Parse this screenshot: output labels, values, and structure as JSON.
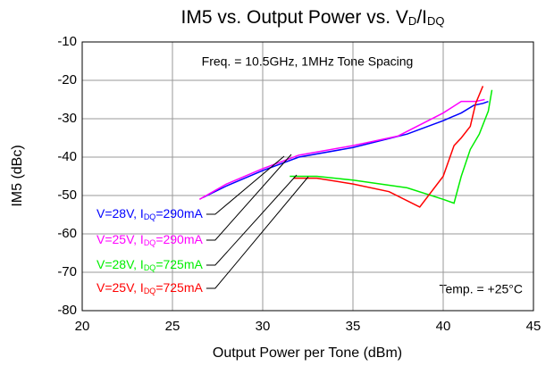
{
  "chart_data": {
    "type": "line",
    "title": [
      "IM5 vs. Output Power vs. V",
      "D",
      "/I",
      "DQ"
    ],
    "x_label": "Output Power per Tone (dBm)",
    "y_label": "IM5 (dBc)",
    "annotations": [
      "Freq. = 10.5GHz, 1MHz Tone Spacing",
      "Temp. = +25°C"
    ],
    "xlim": [
      20,
      45
    ],
    "xticks": [
      20,
      25,
      30,
      35,
      40,
      45
    ],
    "ylim": [
      -80,
      -10
    ],
    "yticks": [
      -80,
      -70,
      -60,
      -50,
      -40,
      -30,
      -20,
      -10
    ],
    "grid": true,
    "series": [
      {
        "name": [
          "V=28V, I",
          "DQ",
          "=290mA"
        ],
        "color": "#0000ff",
        "x": [
          26.7,
          28,
          30,
          32,
          35,
          38,
          40,
          41,
          41.7,
          42.2,
          42.5
        ],
        "values": [
          -50.5,
          -47.5,
          -43.5,
          -40,
          -37.5,
          -34,
          -30.5,
          -28.5,
          -26.5,
          -26,
          -25.5
        ]
      },
      {
        "name": [
          "V=25V, I",
          "DQ",
          "=290mA"
        ],
        "color": "#ff00ff",
        "x": [
          26.5,
          28,
          30,
          32,
          35,
          37.5,
          40,
          41,
          41.8,
          42.3
        ],
        "values": [
          -51,
          -47,
          -43,
          -39.5,
          -37,
          -34.5,
          -28.5,
          -25.5,
          -25.5,
          -25
        ]
      },
      {
        "name": [
          "V=28V, I",
          "DQ",
          "=725mA"
        ],
        "color": "#00ee00",
        "x": [
          31.5,
          33,
          35,
          38,
          40,
          40.6,
          41,
          41.5,
          42,
          42.5,
          42.7
        ],
        "values": [
          -45,
          -45,
          -46,
          -48,
          -51,
          -52,
          -45,
          -38,
          -34,
          -28,
          -22.5
        ]
      },
      {
        "name": [
          "V=25V, I",
          "DQ",
          "=725mA"
        ],
        "color": "#ff0000",
        "x": [
          31.7,
          33,
          35,
          37,
          38.7,
          40,
          40.6,
          41,
          41.5,
          41.8,
          42.2
        ],
        "values": [
          -45.5,
          -45.5,
          -47,
          -49,
          -53,
          -45,
          -37,
          -35,
          -32,
          -26,
          -21.5
        ]
      }
    ]
  }
}
